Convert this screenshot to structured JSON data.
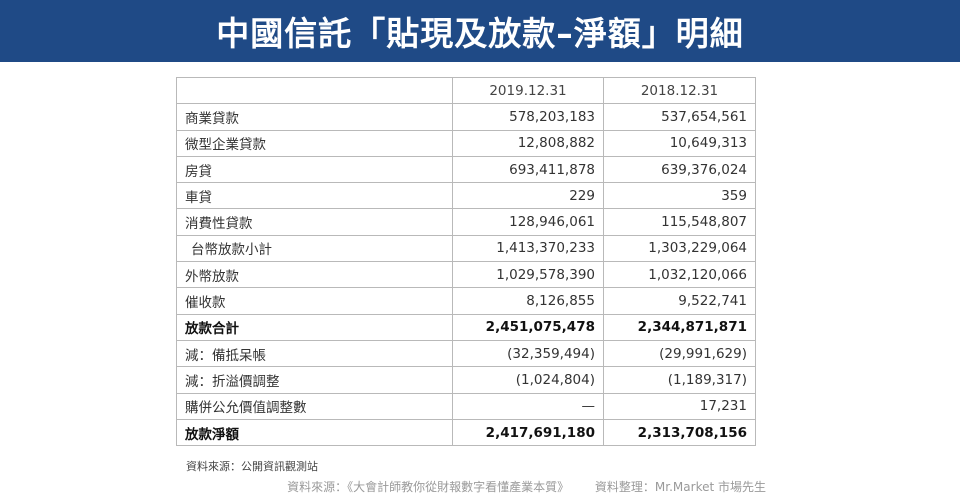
{
  "header": {
    "title": "中國信託「貼現及放款–淨額」明細"
  },
  "table": {
    "columns": [
      "",
      "2019.12.31",
      "2018.12.31"
    ],
    "rows": [
      {
        "label": "商業貸款",
        "v2019": "578,203,183",
        "v2018": "537,654,561"
      },
      {
        "label": "微型企業貸款",
        "v2019": "12,808,882",
        "v2018": "10,649,313"
      },
      {
        "label": "房貸",
        "v2019": "693,411,878",
        "v2018": "639,376,024"
      },
      {
        "label": "車貸",
        "v2019": "229",
        "v2018": "359"
      },
      {
        "label": "消費性貸款",
        "v2019": "128,946,061",
        "v2018": "115,548,807"
      },
      {
        "label": "台幣放款小計",
        "v2019": "1,413,370,233",
        "v2018": "1,303,229,064"
      },
      {
        "label": "外幣放款",
        "v2019": "1,029,578,390",
        "v2018": "1,032,120,066"
      },
      {
        "label": "催收款",
        "v2019": "8,126,855",
        "v2018": "9,522,741"
      },
      {
        "label": "放款合計",
        "v2019": "2,451,075,478",
        "v2018": "2,344,871,871"
      },
      {
        "label": "減：備抵呆帳",
        "v2019": "(32,359,494)",
        "v2018": "(29,991,629)"
      },
      {
        "label": "減：折溢價調整",
        "v2019": "(1,024,804)",
        "v2018": "(1,189,317)"
      },
      {
        "label": "購併公允價值調整數",
        "v2019": "—",
        "v2018": "17,231"
      },
      {
        "label": "放款淨額",
        "v2019": "2,417,691,180",
        "v2018": "2,313,708,156"
      }
    ]
  },
  "source_note": "資料來源：公開資訊觀測站",
  "footer": {
    "source": "資料來源：《大會計師教你從財報數字看懂產業本質》",
    "compiler": "資料整理：Mr.Market 市場先生"
  }
}
